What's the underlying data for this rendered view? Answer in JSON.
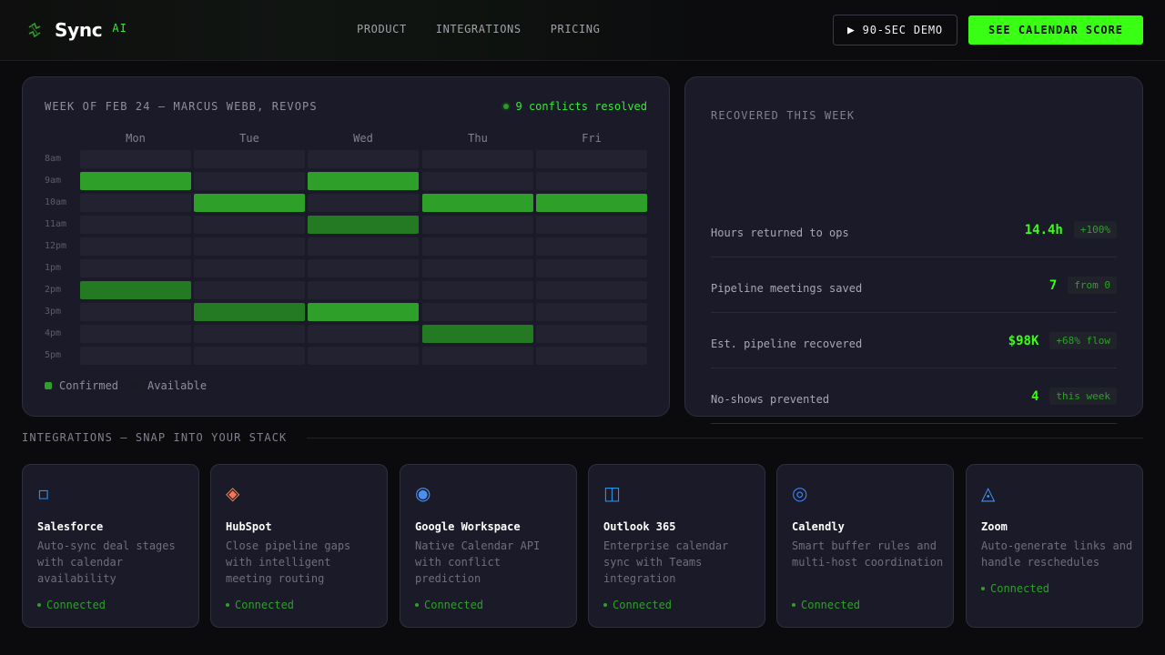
{
  "brand": {
    "name": "Sync",
    "tag": "AI"
  },
  "nav": {
    "items": [
      "PRODUCT",
      "INTEGRATIONS",
      "PRICING"
    ]
  },
  "header": {
    "demo_label": "90-SEC DEMO",
    "cta_label": "SEE CALENDAR SCORE"
  },
  "calendar": {
    "title": "WEEK OF FEB 24 — MARCUS WEBB, REVOPS",
    "conflicts": "9 conflicts resolved",
    "days": [
      "Mon",
      "Tue",
      "Wed",
      "Thu",
      "Fri"
    ],
    "hours": [
      "8am",
      "9am",
      "10am",
      "11am",
      "12pm",
      "1pm",
      "2pm",
      "3pm",
      "4pm",
      "5pm"
    ],
    "confirmed": {
      "Mon": [
        "9am",
        "2pm"
      ],
      "Tue": [
        "10am",
        "3pm"
      ],
      "Wed": [
        "9am",
        "11am",
        "3pm"
      ],
      "Thu": [
        "10am",
        "4pm"
      ],
      "Fri": [
        "10am"
      ]
    },
    "legend": {
      "confirmed": "Confirmed",
      "available": "Available"
    }
  },
  "recovered": {
    "title": "RECOVERED THIS WEEK",
    "metrics": [
      {
        "label": "Hours returned to ops",
        "value": "14.4h",
        "badge": "+100%"
      },
      {
        "label": "Pipeline meetings saved",
        "value": "7",
        "badge": "from 0"
      },
      {
        "label": "Est. pipeline recovered",
        "value": "$98K",
        "badge": "+68% flow"
      },
      {
        "label": "No-shows prevented",
        "value": "4",
        "badge": "this week"
      }
    ]
  },
  "integrations": {
    "title": "INTEGRATIONS — SNAP INTO YOUR STACK",
    "cards": [
      {
        "icon": "salesforce-icon",
        "glyph": "▫",
        "color": "#2f8fe0",
        "name": "Salesforce",
        "desc": "Auto-sync deal stages with calendar availability",
        "status": "Connected"
      },
      {
        "icon": "hubspot-icon",
        "glyph": "◈",
        "color": "#f07a50",
        "name": "HubSpot",
        "desc": "Close pipeline gaps with intelligent meeting routing",
        "status": "Connected"
      },
      {
        "icon": "google-workspace-icon",
        "glyph": "◉",
        "color": "#4a8ff0",
        "name": "Google Workspace",
        "desc": "Native Calendar API with conflict prediction",
        "status": "Connected"
      },
      {
        "icon": "outlook-icon",
        "glyph": "◫",
        "color": "#2f8fe0",
        "name": "Outlook 365",
        "desc": "Enterprise calendar sync with Teams integration",
        "status": "Connected"
      },
      {
        "icon": "calendly-icon",
        "glyph": "◎",
        "color": "#3a7ff0",
        "name": "Calendly",
        "desc": "Smart buffer rules and multi-host coordination",
        "status": "Connected"
      },
      {
        "icon": "zoom-icon",
        "glyph": "◬",
        "color": "#4a8ff0",
        "name": "Zoom",
        "desc": "Auto-generate links and handle reschedules",
        "status": "Connected"
      }
    ]
  }
}
